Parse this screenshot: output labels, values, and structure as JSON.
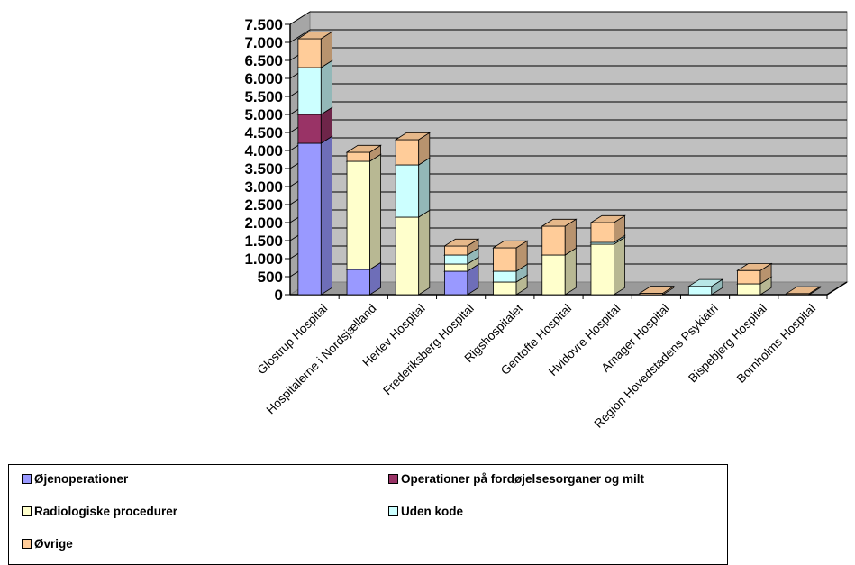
{
  "chart_data": {
    "type": "bar",
    "stacked": true,
    "three_d": true,
    "title": "",
    "xlabel": "",
    "ylabel": "",
    "ylim": [
      0,
      7500
    ],
    "yticks": [
      0,
      500,
      1000,
      1500,
      2000,
      2500,
      3000,
      3500,
      4000,
      4500,
      5000,
      5500,
      6000,
      6500,
      7000,
      7500
    ],
    "ytick_labels": [
      "0",
      "500",
      "1.000",
      "1.500",
      "2.000",
      "2.500",
      "3.000",
      "3.500",
      "4.000",
      "4.500",
      "5.000",
      "5.500",
      "6.000",
      "6.500",
      "7.000",
      "7.500"
    ],
    "grid": true,
    "legend_position": "bottom",
    "categories": [
      "Glostrup Hospital",
      "Hospitalerne i Nordsjælland",
      "Herlev Hospital",
      "Frederiksberg Hospital",
      "Rigshospitalet",
      "Gentofte Hospital",
      "Hvidovre Hospital",
      "Amager Hospital",
      "Region Hovedstadens Psykiatri",
      "Bispebjerg Hospital",
      "Bornholms Hospital"
    ],
    "series": [
      {
        "name": "Øjenoperationer",
        "color": "#9999ff",
        "values": [
          4200,
          700,
          0,
          650,
          0,
          0,
          0,
          0,
          0,
          0,
          0
        ]
      },
      {
        "name": "Operationer på fordøjelsesorganer og milt",
        "color": "#993366",
        "values": [
          800,
          0,
          0,
          0,
          0,
          0,
          0,
          0,
          0,
          0,
          0
        ]
      },
      {
        "name": "Radiologiske procedurer",
        "color": "#ffffcc",
        "values": [
          0,
          3000,
          2150,
          200,
          350,
          1100,
          1400,
          0,
          0,
          300,
          0
        ]
      },
      {
        "name": "Uden kode",
        "color": "#ccffff",
        "values": [
          1300,
          0,
          1450,
          250,
          300,
          0,
          50,
          0,
          230,
          0,
          0
        ]
      },
      {
        "name": "Øvrige",
        "color": "#ffcc99",
        "values": [
          800,
          250,
          700,
          250,
          650,
          800,
          550,
          40,
          0,
          370,
          30
        ]
      }
    ]
  }
}
